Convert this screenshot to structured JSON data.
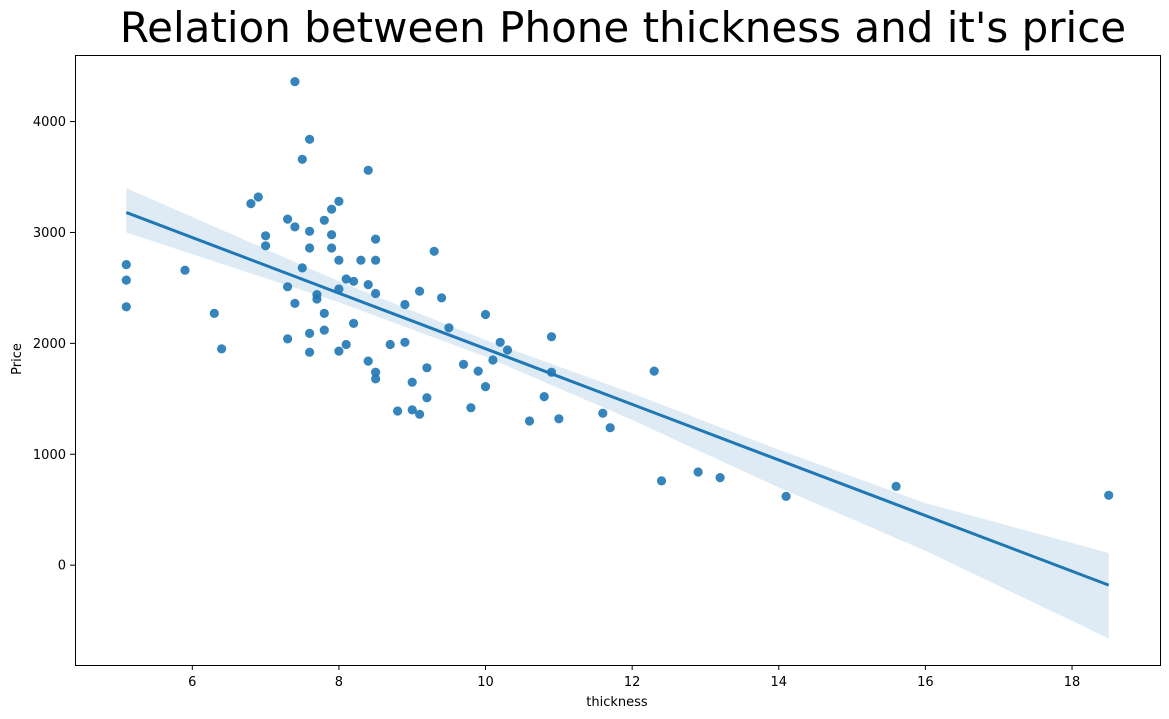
{
  "chart_data": {
    "type": "scatter",
    "title": "Relation between Phone thickness and it's price",
    "xlabel": "thickness",
    "ylabel": "Price",
    "xlim": [
      4.4,
      19.2
    ],
    "ylim": [
      -900,
      4600
    ],
    "xticks": [
      6,
      8,
      10,
      12,
      14,
      16,
      18
    ],
    "yticks": [
      0,
      1000,
      2000,
      3000,
      4000
    ],
    "grid": false,
    "color": "#1f77b4",
    "points": [
      [
        5.1,
        2710
      ],
      [
        5.1,
        2570
      ],
      [
        5.1,
        2330
      ],
      [
        5.9,
        2660
      ],
      [
        6.3,
        2270
      ],
      [
        6.4,
        1950
      ],
      [
        6.8,
        3260
      ],
      [
        6.9,
        3320
      ],
      [
        7.0,
        2970
      ],
      [
        7.0,
        2880
      ],
      [
        7.3,
        3120
      ],
      [
        7.3,
        2510
      ],
      [
        7.3,
        2040
      ],
      [
        7.4,
        4360
      ],
      [
        7.4,
        3050
      ],
      [
        7.4,
        2360
      ],
      [
        7.5,
        3660
      ],
      [
        7.5,
        2680
      ],
      [
        7.6,
        3840
      ],
      [
        7.6,
        3010
      ],
      [
        7.6,
        2860
      ],
      [
        7.6,
        2090
      ],
      [
        7.6,
        1920
      ],
      [
        7.7,
        2440
      ],
      [
        7.7,
        2400
      ],
      [
        7.8,
        3110
      ],
      [
        7.8,
        2270
      ],
      [
        7.8,
        2120
      ],
      [
        7.9,
        3210
      ],
      [
        7.9,
        2980
      ],
      [
        7.9,
        2860
      ],
      [
        8.0,
        3280
      ],
      [
        8.0,
        2750
      ],
      [
        8.0,
        2490
      ],
      [
        8.0,
        1930
      ],
      [
        8.1,
        2580
      ],
      [
        8.1,
        1990
      ],
      [
        8.2,
        2560
      ],
      [
        8.2,
        2180
      ],
      [
        8.3,
        2750
      ],
      [
        8.4,
        3560
      ],
      [
        8.4,
        2530
      ],
      [
        8.4,
        1840
      ],
      [
        8.5,
        2940
      ],
      [
        8.5,
        2750
      ],
      [
        8.5,
        2450
      ],
      [
        8.5,
        1740
      ],
      [
        8.5,
        1680
      ],
      [
        8.7,
        1990
      ],
      [
        8.8,
        1390
      ],
      [
        8.9,
        2350
      ],
      [
        8.9,
        2010
      ],
      [
        9.0,
        1650
      ],
      [
        9.0,
        1400
      ],
      [
        9.1,
        2470
      ],
      [
        9.1,
        1360
      ],
      [
        9.2,
        1780
      ],
      [
        9.2,
        1510
      ],
      [
        9.3,
        2830
      ],
      [
        9.4,
        2410
      ],
      [
        9.5,
        2140
      ],
      [
        9.7,
        1810
      ],
      [
        9.8,
        1420
      ],
      [
        9.9,
        1750
      ],
      [
        10.0,
        2260
      ],
      [
        10.0,
        1610
      ],
      [
        10.1,
        1850
      ],
      [
        10.2,
        2010
      ],
      [
        10.3,
        1940
      ],
      [
        10.6,
        1300
      ],
      [
        10.8,
        1520
      ],
      [
        10.9,
        2060
      ],
      [
        10.9,
        1740
      ],
      [
        11.0,
        1320
      ],
      [
        11.6,
        1370
      ],
      [
        11.7,
        1240
      ],
      [
        12.3,
        1750
      ],
      [
        12.4,
        760
      ],
      [
        12.9,
        840
      ],
      [
        13.2,
        790
      ],
      [
        14.1,
        620
      ],
      [
        15.6,
        710
      ],
      [
        18.5,
        630
      ]
    ],
    "regression": {
      "x": [
        5.1,
        18.5
      ],
      "y": [
        3180,
        -180
      ]
    },
    "confidence_band": {
      "x": [
        5.1,
        8.0,
        10.0,
        12.0,
        14.0,
        16.0,
        18.5
      ],
      "lower": [
        3000,
        2370,
        1880,
        1310,
        700,
        130,
        -660
      ],
      "upper": [
        3400,
        2560,
        2030,
        1550,
        1040,
        560,
        110
      ]
    }
  }
}
